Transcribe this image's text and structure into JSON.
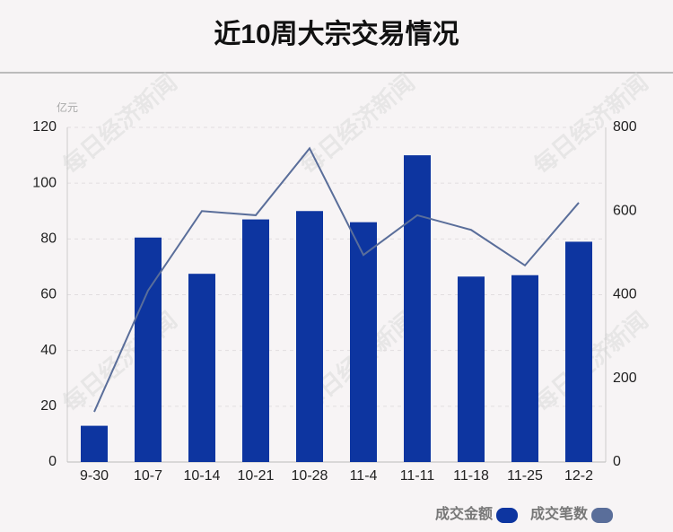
{
  "chart_data": {
    "type": "bar",
    "title": "近10周大宗交易情况",
    "y_unit": "亿元",
    "watermark": "每日经济新闻",
    "categories": [
      "9-30",
      "10-7",
      "10-14",
      "10-21",
      "10-28",
      "11-4",
      "11-11",
      "11-18",
      "11-25",
      "12-2"
    ],
    "series": [
      {
        "name": "成交金额",
        "type": "bar",
        "color": "#0d35a0",
        "values": [
          13,
          80.5,
          67.5,
          87,
          90,
          86,
          110,
          66.5,
          67,
          79
        ]
      },
      {
        "name": "成交笔数",
        "type": "line",
        "axis": "y2",
        "color": "#5a6e9a",
        "values": [
          120,
          410,
          600,
          590,
          750,
          495,
          590,
          555,
          470,
          620
        ]
      }
    ],
    "ylim": [
      0,
      120
    ],
    "yticks": [
      0,
      20,
      40,
      60,
      80,
      100,
      120
    ],
    "y2lim": [
      0,
      800
    ],
    "y2ticks": [
      0,
      200,
      400,
      600,
      800
    ],
    "grid": true
  }
}
